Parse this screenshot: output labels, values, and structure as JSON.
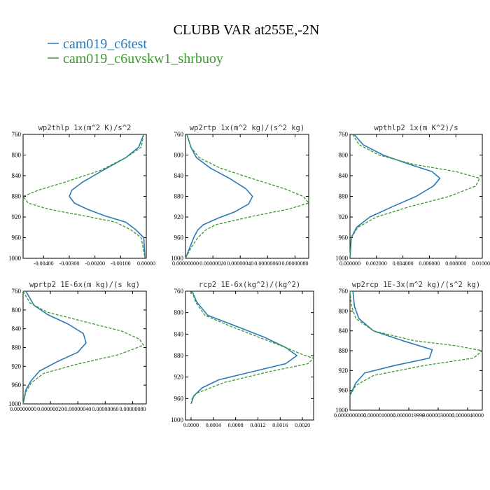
{
  "title": "CLUBB VAR at255E,-2N",
  "colors": {
    "blue": "#2a7ab8",
    "green": "#3a9a2c"
  },
  "legend": [
    {
      "label": "cam019_c6test",
      "color": "#2a7ab8"
    },
    {
      "label": "cam019_c6uvskw1_shrbuoy",
      "color": "#3a9a2c"
    }
  ],
  "chart_data": [
    {
      "type": "line",
      "title": "wp2thlp   1x(m^2 K)/s^2",
      "xlim": [
        -0.0048,
        0.0
      ],
      "ylim": [
        760,
        1000
      ],
      "y_axis": "reversed",
      "yticks": [
        "760",
        "800",
        "840",
        "880",
        "920",
        "960",
        "1000"
      ],
      "xticks": [
        {
          "v": -0.004,
          "label": "-0.00400"
        },
        {
          "v": -0.003,
          "label": "-0.00300"
        },
        {
          "v": -0.002,
          "label": "-0.00200"
        },
        {
          "v": -0.001,
          "label": "-0.00100"
        },
        {
          "v": 0.0,
          "label": "0.00000"
        }
      ],
      "series": [
        {
          "name": "cam019_c6test",
          "color": "#2a7ab8",
          "dashed": false,
          "x": [
            -0.0001,
            -0.0003,
            -0.0008,
            -0.0017,
            -0.0025,
            -0.0029,
            -0.003,
            -0.0028,
            -0.0023,
            -0.0016,
            -0.0008,
            -0.0004,
            -0.0001,
            -5e-05
          ],
          "y": [
            760,
            785,
            805,
            830,
            853,
            868,
            880,
            893,
            905,
            918,
            930,
            945,
            960,
            1000
          ]
        },
        {
          "name": "cam019_c6uvskw1_shrbuoy",
          "color": "#3a9a2c",
          "dashed": true,
          "x": [
            -0.0001,
            -0.0002,
            -0.0008,
            -0.0018,
            -0.0032,
            -0.0042,
            -0.0048,
            -0.0046,
            -0.0038,
            -0.0024,
            -0.0012,
            -0.0006,
            -0.0002,
            -5e-05
          ],
          "y": [
            760,
            785,
            805,
            830,
            853,
            868,
            880,
            893,
            905,
            918,
            930,
            945,
            960,
            1000
          ]
        }
      ]
    },
    {
      "type": "line",
      "title": "wp2rtp   1x(m^2 kg)/(s^2 kg)",
      "xlim": [
        0.0,
        9e-07
      ],
      "ylim": [
        760,
        1000
      ],
      "y_axis": "reversed",
      "yticks": [
        "760",
        "800",
        "840",
        "880",
        "920",
        "960",
        "1000"
      ],
      "xticks": [
        {
          "v": 0.0,
          "label": "0.00000000"
        },
        {
          "v": 2e-07,
          "label": "0.00000020"
        },
        {
          "v": 4e-07,
          "label": "0.00000040"
        },
        {
          "v": 6e-07,
          "label": "0.00000060"
        },
        {
          "v": 8e-07,
          "label": "0.00000080"
        }
      ],
      "series": [
        {
          "name": "cam019_c6test",
          "color": "#2a7ab8",
          "dashed": false,
          "x": [
            1e-08,
            4e-08,
            8e-08,
            1.8e-07,
            3.2e-07,
            4.4e-07,
            4.9e-07,
            4.6e-07,
            3.6e-07,
            2.4e-07,
            1.3e-07,
            9e-08,
            6e-08,
            3e-08,
            0.0
          ],
          "y": [
            760,
            785,
            805,
            825,
            845,
            865,
            880,
            895,
            910,
            922,
            935,
            945,
            960,
            980,
            1000
          ]
        },
        {
          "name": "cam019_c6uvskw1_shrbuoy",
          "color": "#3a9a2c",
          "dashed": true,
          "x": [
            1e-08,
            4e-08,
            1e-07,
            2.5e-07,
            4.8e-07,
            7.2e-07,
            8.6e-07,
            9e-07,
            7.5e-07,
            5e-07,
            2.2e-07,
            1.5e-07,
            9e-08,
            4e-08,
            0.0
          ],
          "y": [
            760,
            785,
            805,
            825,
            845,
            865,
            880,
            893,
            905,
            918,
            935,
            945,
            960,
            980,
            1000
          ]
        }
      ]
    },
    {
      "type": "line",
      "title": "wpthlp2   1x(m K^2)/s",
      "xlim": [
        0.0,
        0.01
      ],
      "ylim": [
        760,
        1000
      ],
      "y_axis": "reversed",
      "yticks": [
        "760",
        "800",
        "840",
        "880",
        "920",
        "960",
        "1000"
      ],
      "xticks": [
        {
          "v": 0.0,
          "label": "0.000000"
        },
        {
          "v": 0.002,
          "label": "0.002000"
        },
        {
          "v": 0.004,
          "label": "0.004000"
        },
        {
          "v": 0.006,
          "label": "0.006000"
        },
        {
          "v": 0.008,
          "label": "0.008000"
        },
        {
          "v": 0.01,
          "label": "0.010000"
        }
      ],
      "series": [
        {
          "name": "cam019_c6test",
          "color": "#2a7ab8",
          "dashed": false,
          "x": [
            0.0003,
            0.001,
            0.0025,
            0.0045,
            0.0062,
            0.0068,
            0.0063,
            0.005,
            0.0032,
            0.0015,
            0.0005,
            0.0001,
            0.0
          ],
          "y": [
            760,
            780,
            800,
            818,
            832,
            845,
            860,
            880,
            900,
            920,
            940,
            960,
            1000
          ]
        },
        {
          "name": "cam019_c6uvskw1_shrbuoy",
          "color": "#3a9a2c",
          "dashed": true,
          "x": [
            0.0002,
            0.0007,
            0.0022,
            0.0048,
            0.008,
            0.0098,
            0.0095,
            0.0075,
            0.0045,
            0.002,
            0.0006,
            0.0001,
            0.0
          ],
          "y": [
            760,
            780,
            800,
            818,
            832,
            845,
            860,
            880,
            900,
            920,
            940,
            960,
            1000
          ]
        }
      ]
    },
    {
      "type": "line",
      "title": "wprtp2   1E-6x(m kg)/(s kg)",
      "xlim": [
        0.0,
        9e-07
      ],
      "ylim": [
        760,
        1000
      ],
      "y_axis": "reversed",
      "yticks": [
        "760",
        "800",
        "840",
        "880",
        "920",
        "960",
        "1000"
      ],
      "xticks": [
        {
          "v": 0.0,
          "label": "0.00000000"
        },
        {
          "v": 2e-07,
          "label": "0.00000020"
        },
        {
          "v": 4e-07,
          "label": "0.00000040"
        },
        {
          "v": 6e-07,
          "label": "0.00000060"
        },
        {
          "v": 8e-07,
          "label": "0.00000080"
        }
      ],
      "series": [
        {
          "name": "cam019_c6test",
          "color": "#2a7ab8",
          "dashed": false,
          "x": [
            2e-08,
            8e-08,
            1.8e-07,
            3.3e-07,
            4.4e-07,
            4.6e-07,
            4e-07,
            2.5e-07,
            1.2e-07,
            6e-08,
            2e-08,
            0.0
          ],
          "y": [
            760,
            790,
            810,
            830,
            850,
            870,
            890,
            910,
            930,
            950,
            970,
            1000
          ]
        },
        {
          "name": "cam019_c6uvskw1_shrbuoy",
          "color": "#3a9a2c",
          "dashed": true,
          "x": [
            0.0,
            5e-08,
            1.8e-07,
            4.5e-07,
            7.2e-07,
            8.5e-07,
            8.8e-07,
            7e-07,
            4e-07,
            1.5e-07,
            6e-08,
            2e-08,
            0.0
          ],
          "y": [
            760,
            785,
            805,
            825,
            845,
            862,
            875,
            895,
            915,
            935,
            955,
            975,
            1000
          ]
        }
      ]
    },
    {
      "type": "line",
      "title": "rcp2   1E-6x(kg^2)/(kg^2)",
      "xlim": [
        -0.0001,
        0.0022
      ],
      "ylim": [
        760,
        1000
      ],
      "y_axis": "reversed",
      "yticks": [
        "760",
        "800",
        "840",
        "880",
        "920",
        "960",
        "1000"
      ],
      "xticks": [
        {
          "v": 0.0,
          "label": "0.0000"
        },
        {
          "v": 0.0004,
          "label": "0.0004"
        },
        {
          "v": 0.0008,
          "label": "0.0008"
        },
        {
          "v": 0.0012,
          "label": "0.0012"
        },
        {
          "v": 0.0016,
          "label": "0.0016"
        },
        {
          "v": 0.002,
          "label": "0.0020"
        }
      ],
      "series": [
        {
          "name": "cam019_c6test",
          "color": "#2a7ab8",
          "dashed": false,
          "x": [
            2e-05,
            0.0001,
            0.0003,
            0.0008,
            0.0013,
            0.0017,
            0.0019,
            0.0017,
            0.0011,
            0.0005,
            0.0002,
            5e-05,
            0.0
          ],
          "y": [
            760,
            780,
            805,
            825,
            845,
            865,
            880,
            895,
            910,
            925,
            940,
            955,
            970
          ]
        },
        {
          "name": "cam019_c6uvskw1_shrbuoy",
          "color": "#3a9a2c",
          "dashed": true,
          "x": [
            2e-05,
            8e-05,
            0.00025,
            0.0007,
            0.0012,
            0.0017,
            0.002,
            0.0022,
            0.0021,
            0.0014,
            0.0006,
            0.0001,
            2e-05,
            0.0
          ],
          "y": [
            760,
            780,
            805,
            825,
            845,
            865,
            878,
            885,
            895,
            910,
            930,
            950,
            960,
            970
          ]
        }
      ]
    },
    {
      "type": "line",
      "title": "wp2rcp   1E-3x(m^2 kg)/(s^2 kg)",
      "xlim": [
        0.0,
        4.5e-06
      ],
      "ylim": [
        760,
        1000
      ],
      "y_axis": "reversed",
      "yticks": [
        "760",
        "800",
        "840",
        "880",
        "920",
        "960",
        "1000"
      ],
      "xticks": [
        {
          "v": 0.0,
          "label": "0.0000000000"
        },
        {
          "v": 1e-06,
          "label": "0.0000010000"
        },
        {
          "v": 2e-06,
          "label": "0.0000019999"
        },
        {
          "v": 3e-06,
          "label": "0.0000030000"
        },
        {
          "v": 4e-06,
          "label": "0.0000040000"
        }
      ],
      "series": [
        {
          "name": "cam019_c6test",
          "color": "#2a7ab8",
          "dashed": false,
          "x": [
            1e-07,
            1.5e-07,
            3e-07,
            8e-07,
            1.8e-06,
            2.8e-06,
            2.7e-06,
            1.5e-06,
            5e-07,
            2e-07,
            0.0
          ],
          "y": [
            760,
            790,
            815,
            840,
            860,
            878,
            895,
            910,
            925,
            945,
            970
          ]
        },
        {
          "name": "cam019_c6uvskw1_shrbuoy",
          "color": "#3a9a2c",
          "dashed": true,
          "x": [
            0.0,
            5e-08,
            2e-07,
            8e-07,
            2.2e-06,
            3.6e-06,
            4.5e-06,
            4.2e-06,
            2.5e-06,
            8e-07,
            2e-07,
            0.0
          ],
          "y": [
            760,
            790,
            815,
            840,
            860,
            870,
            880,
            895,
            910,
            930,
            950,
            970
          ]
        }
      ]
    }
  ]
}
